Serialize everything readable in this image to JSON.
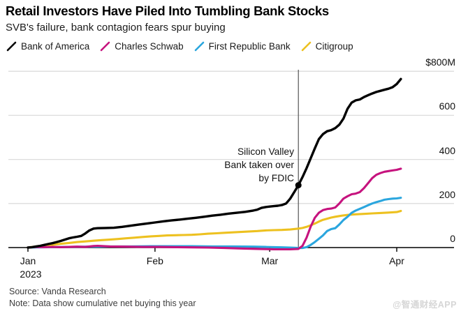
{
  "header": {
    "title": "Retail Investors Have Piled Into Tumbling Bank Stocks",
    "subtitle": "SVB's failure, bank contagion fears spur buying"
  },
  "annotation": {
    "line1": "Silicon Valley",
    "line2": "Bank taken over",
    "line3": "by FDIC"
  },
  "footer": {
    "source": "Source: Vanda Research",
    "note": "Note: Data show cumulative net buying this year",
    "watermark": "@智通财经APP"
  },
  "colors": {
    "grid": "#dcdcdc",
    "axis": "#000000",
    "event_line": "#555555"
  },
  "chart_data": {
    "type": "line",
    "title": "Retail Investors Have Piled Into Tumbling Bank Stocks",
    "subtitle": "SVB's failure, bank contagion fears spur buying",
    "legend_position": "top",
    "grid": true,
    "x_axis": {
      "unit": "days since Jan 1, 2023",
      "range": [
        0,
        93
      ],
      "ticks": [
        {
          "day": 0,
          "label": "Jan",
          "sublabel": "2023"
        },
        {
          "day": 31,
          "label": "Feb",
          "sublabel": ""
        },
        {
          "day": 59,
          "label": "Mar",
          "sublabel": ""
        },
        {
          "day": 90,
          "label": "Apr",
          "sublabel": ""
        }
      ]
    },
    "y_axis": {
      "unit": "cumulative net buying, $ millions",
      "range": [
        0,
        800
      ],
      "ticks": [
        {
          "value": 800,
          "label": "$800M"
        },
        {
          "value": 600,
          "label": "600"
        },
        {
          "value": 400,
          "label": "400"
        },
        {
          "value": 200,
          "label": "200"
        },
        {
          "value": 0,
          "label": "0"
        }
      ]
    },
    "event": {
      "day": 66,
      "date": "March 10, 2023",
      "label_lines": [
        "Silicon Valley",
        "Bank taken over",
        "by FDIC"
      ],
      "marker_series": "Bank of America",
      "marker_value": 283
    },
    "series": [
      {
        "name": "Bank of America",
        "color": "#000000",
        "points": [
          [
            0,
            0
          ],
          [
            1,
            2
          ],
          [
            2,
            5
          ],
          [
            3,
            8
          ],
          [
            4,
            12
          ],
          [
            5,
            16
          ],
          [
            6,
            20
          ],
          [
            7,
            25
          ],
          [
            8,
            30
          ],
          [
            9,
            36
          ],
          [
            10,
            42
          ],
          [
            11,
            46
          ],
          [
            12,
            49
          ],
          [
            13,
            53
          ],
          [
            14,
            64
          ],
          [
            15,
            78
          ],
          [
            16,
            86
          ],
          [
            17,
            88
          ],
          [
            19,
            89
          ],
          [
            21,
            90
          ],
          [
            23,
            94
          ],
          [
            25,
            99
          ],
          [
            27,
            104
          ],
          [
            29,
            109
          ],
          [
            31,
            114
          ],
          [
            33,
            119
          ],
          [
            35,
            123
          ],
          [
            37,
            127
          ],
          [
            39,
            131
          ],
          [
            41,
            135
          ],
          [
            43,
            140
          ],
          [
            45,
            145
          ],
          [
            47,
            149
          ],
          [
            49,
            154
          ],
          [
            51,
            158
          ],
          [
            53,
            162
          ],
          [
            55,
            168
          ],
          [
            56,
            172
          ],
          [
            57,
            180
          ],
          [
            58,
            184
          ],
          [
            59,
            186
          ],
          [
            60,
            188
          ],
          [
            61,
            190
          ],
          [
            62,
            193
          ],
          [
            63,
            200
          ],
          [
            64,
            222
          ],
          [
            65,
            252
          ],
          [
            66,
            283
          ],
          [
            67,
            320
          ],
          [
            68,
            360
          ],
          [
            69,
            405
          ],
          [
            70,
            450
          ],
          [
            71,
            492
          ],
          [
            72,
            515
          ],
          [
            73,
            528
          ],
          [
            74,
            533
          ],
          [
            75,
            542
          ],
          [
            76,
            558
          ],
          [
            77,
            585
          ],
          [
            78,
            630
          ],
          [
            79,
            658
          ],
          [
            80,
            668
          ],
          [
            81,
            672
          ],
          [
            82,
            683
          ],
          [
            83,
            691
          ],
          [
            84,
            699
          ],
          [
            85,
            706
          ],
          [
            86,
            711
          ],
          [
            87,
            716
          ],
          [
            88,
            721
          ],
          [
            89,
            728
          ],
          [
            90,
            742
          ],
          [
            91,
            765
          ]
        ]
      },
      {
        "name": "Charles Schwab",
        "color": "#c6137e",
        "points": [
          [
            0,
            0
          ],
          [
            2,
            3
          ],
          [
            4,
            2
          ],
          [
            6,
            3
          ],
          [
            8,
            2
          ],
          [
            10,
            3
          ],
          [
            12,
            4
          ],
          [
            14,
            3
          ],
          [
            15,
            5
          ],
          [
            16,
            7
          ],
          [
            17,
            8
          ],
          [
            18,
            7
          ],
          [
            20,
            5
          ],
          [
            24,
            4
          ],
          [
            28,
            3
          ],
          [
            32,
            3
          ],
          [
            36,
            2
          ],
          [
            40,
            1
          ],
          [
            44,
            0
          ],
          [
            48,
            -2
          ],
          [
            52,
            -4
          ],
          [
            56,
            -6
          ],
          [
            58,
            -7
          ],
          [
            60,
            -8
          ],
          [
            62,
            -8
          ],
          [
            64,
            -8
          ],
          [
            66,
            -6
          ],
          [
            67,
            8
          ],
          [
            68,
            45
          ],
          [
            69,
            95
          ],
          [
            70,
            135
          ],
          [
            71,
            158
          ],
          [
            72,
            170
          ],
          [
            73,
            175
          ],
          [
            74,
            177
          ],
          [
            75,
            182
          ],
          [
            76,
            200
          ],
          [
            77,
            222
          ],
          [
            78,
            233
          ],
          [
            79,
            242
          ],
          [
            80,
            245
          ],
          [
            81,
            252
          ],
          [
            82,
            270
          ],
          [
            83,
            292
          ],
          [
            84,
            315
          ],
          [
            85,
            330
          ],
          [
            86,
            338
          ],
          [
            87,
            344
          ],
          [
            88,
            347
          ],
          [
            89,
            350
          ],
          [
            90,
            353
          ],
          [
            91,
            358
          ]
        ]
      },
      {
        "name": "First Republic Bank",
        "color": "#2ba6de",
        "points": [
          [
            0,
            0
          ],
          [
            5,
            2
          ],
          [
            10,
            3
          ],
          [
            15,
            4
          ],
          [
            20,
            5
          ],
          [
            25,
            5
          ],
          [
            30,
            6
          ],
          [
            35,
            6
          ],
          [
            40,
            6
          ],
          [
            45,
            5
          ],
          [
            50,
            5
          ],
          [
            55,
            4
          ],
          [
            58,
            3
          ],
          [
            60,
            2
          ],
          [
            62,
            1
          ],
          [
            64,
            0
          ],
          [
            66,
            -2
          ],
          [
            67,
            -2
          ],
          [
            68,
            2
          ],
          [
            69,
            12
          ],
          [
            70,
            25
          ],
          [
            71,
            40
          ],
          [
            72,
            55
          ],
          [
            73,
            75
          ],
          [
            74,
            84
          ],
          [
            75,
            88
          ],
          [
            76,
            105
          ],
          [
            77,
            125
          ],
          [
            78,
            140
          ],
          [
            79,
            158
          ],
          [
            80,
            168
          ],
          [
            81,
            176
          ],
          [
            82,
            184
          ],
          [
            83,
            192
          ],
          [
            84,
            200
          ],
          [
            85,
            206
          ],
          [
            86,
            211
          ],
          [
            87,
            217
          ],
          [
            88,
            220
          ],
          [
            89,
            222
          ],
          [
            90,
            223
          ],
          [
            91,
            226
          ]
        ]
      },
      {
        "name": "Citigroup",
        "color": "#edc120",
        "points": [
          [
            0,
            0
          ],
          [
            2,
            5
          ],
          [
            4,
            9
          ],
          [
            6,
            13
          ],
          [
            8,
            17
          ],
          [
            10,
            21
          ],
          [
            12,
            25
          ],
          [
            14,
            28
          ],
          [
            16,
            31
          ],
          [
            18,
            34
          ],
          [
            20,
            36
          ],
          [
            22,
            39
          ],
          [
            24,
            42
          ],
          [
            26,
            45
          ],
          [
            28,
            48
          ],
          [
            30,
            51
          ],
          [
            32,
            53
          ],
          [
            34,
            55
          ],
          [
            36,
            56
          ],
          [
            38,
            57
          ],
          [
            40,
            58
          ],
          [
            42,
            60
          ],
          [
            44,
            63
          ],
          [
            46,
            65
          ],
          [
            48,
            67
          ],
          [
            50,
            69
          ],
          [
            52,
            71
          ],
          [
            54,
            73
          ],
          [
            56,
            75
          ],
          [
            58,
            78
          ],
          [
            60,
            79
          ],
          [
            62,
            80
          ],
          [
            64,
            82
          ],
          [
            66,
            86
          ],
          [
            67,
            89
          ],
          [
            68,
            94
          ],
          [
            69,
            101
          ],
          [
            70,
            109
          ],
          [
            71,
            118
          ],
          [
            72,
            126
          ],
          [
            73,
            131
          ],
          [
            74,
            136
          ],
          [
            75,
            140
          ],
          [
            76,
            143
          ],
          [
            77,
            146
          ],
          [
            78,
            148
          ],
          [
            80,
            151
          ],
          [
            82,
            153
          ],
          [
            84,
            155
          ],
          [
            86,
            157
          ],
          [
            88,
            159
          ],
          [
            90,
            161
          ],
          [
            91,
            166
          ]
        ]
      }
    ]
  }
}
